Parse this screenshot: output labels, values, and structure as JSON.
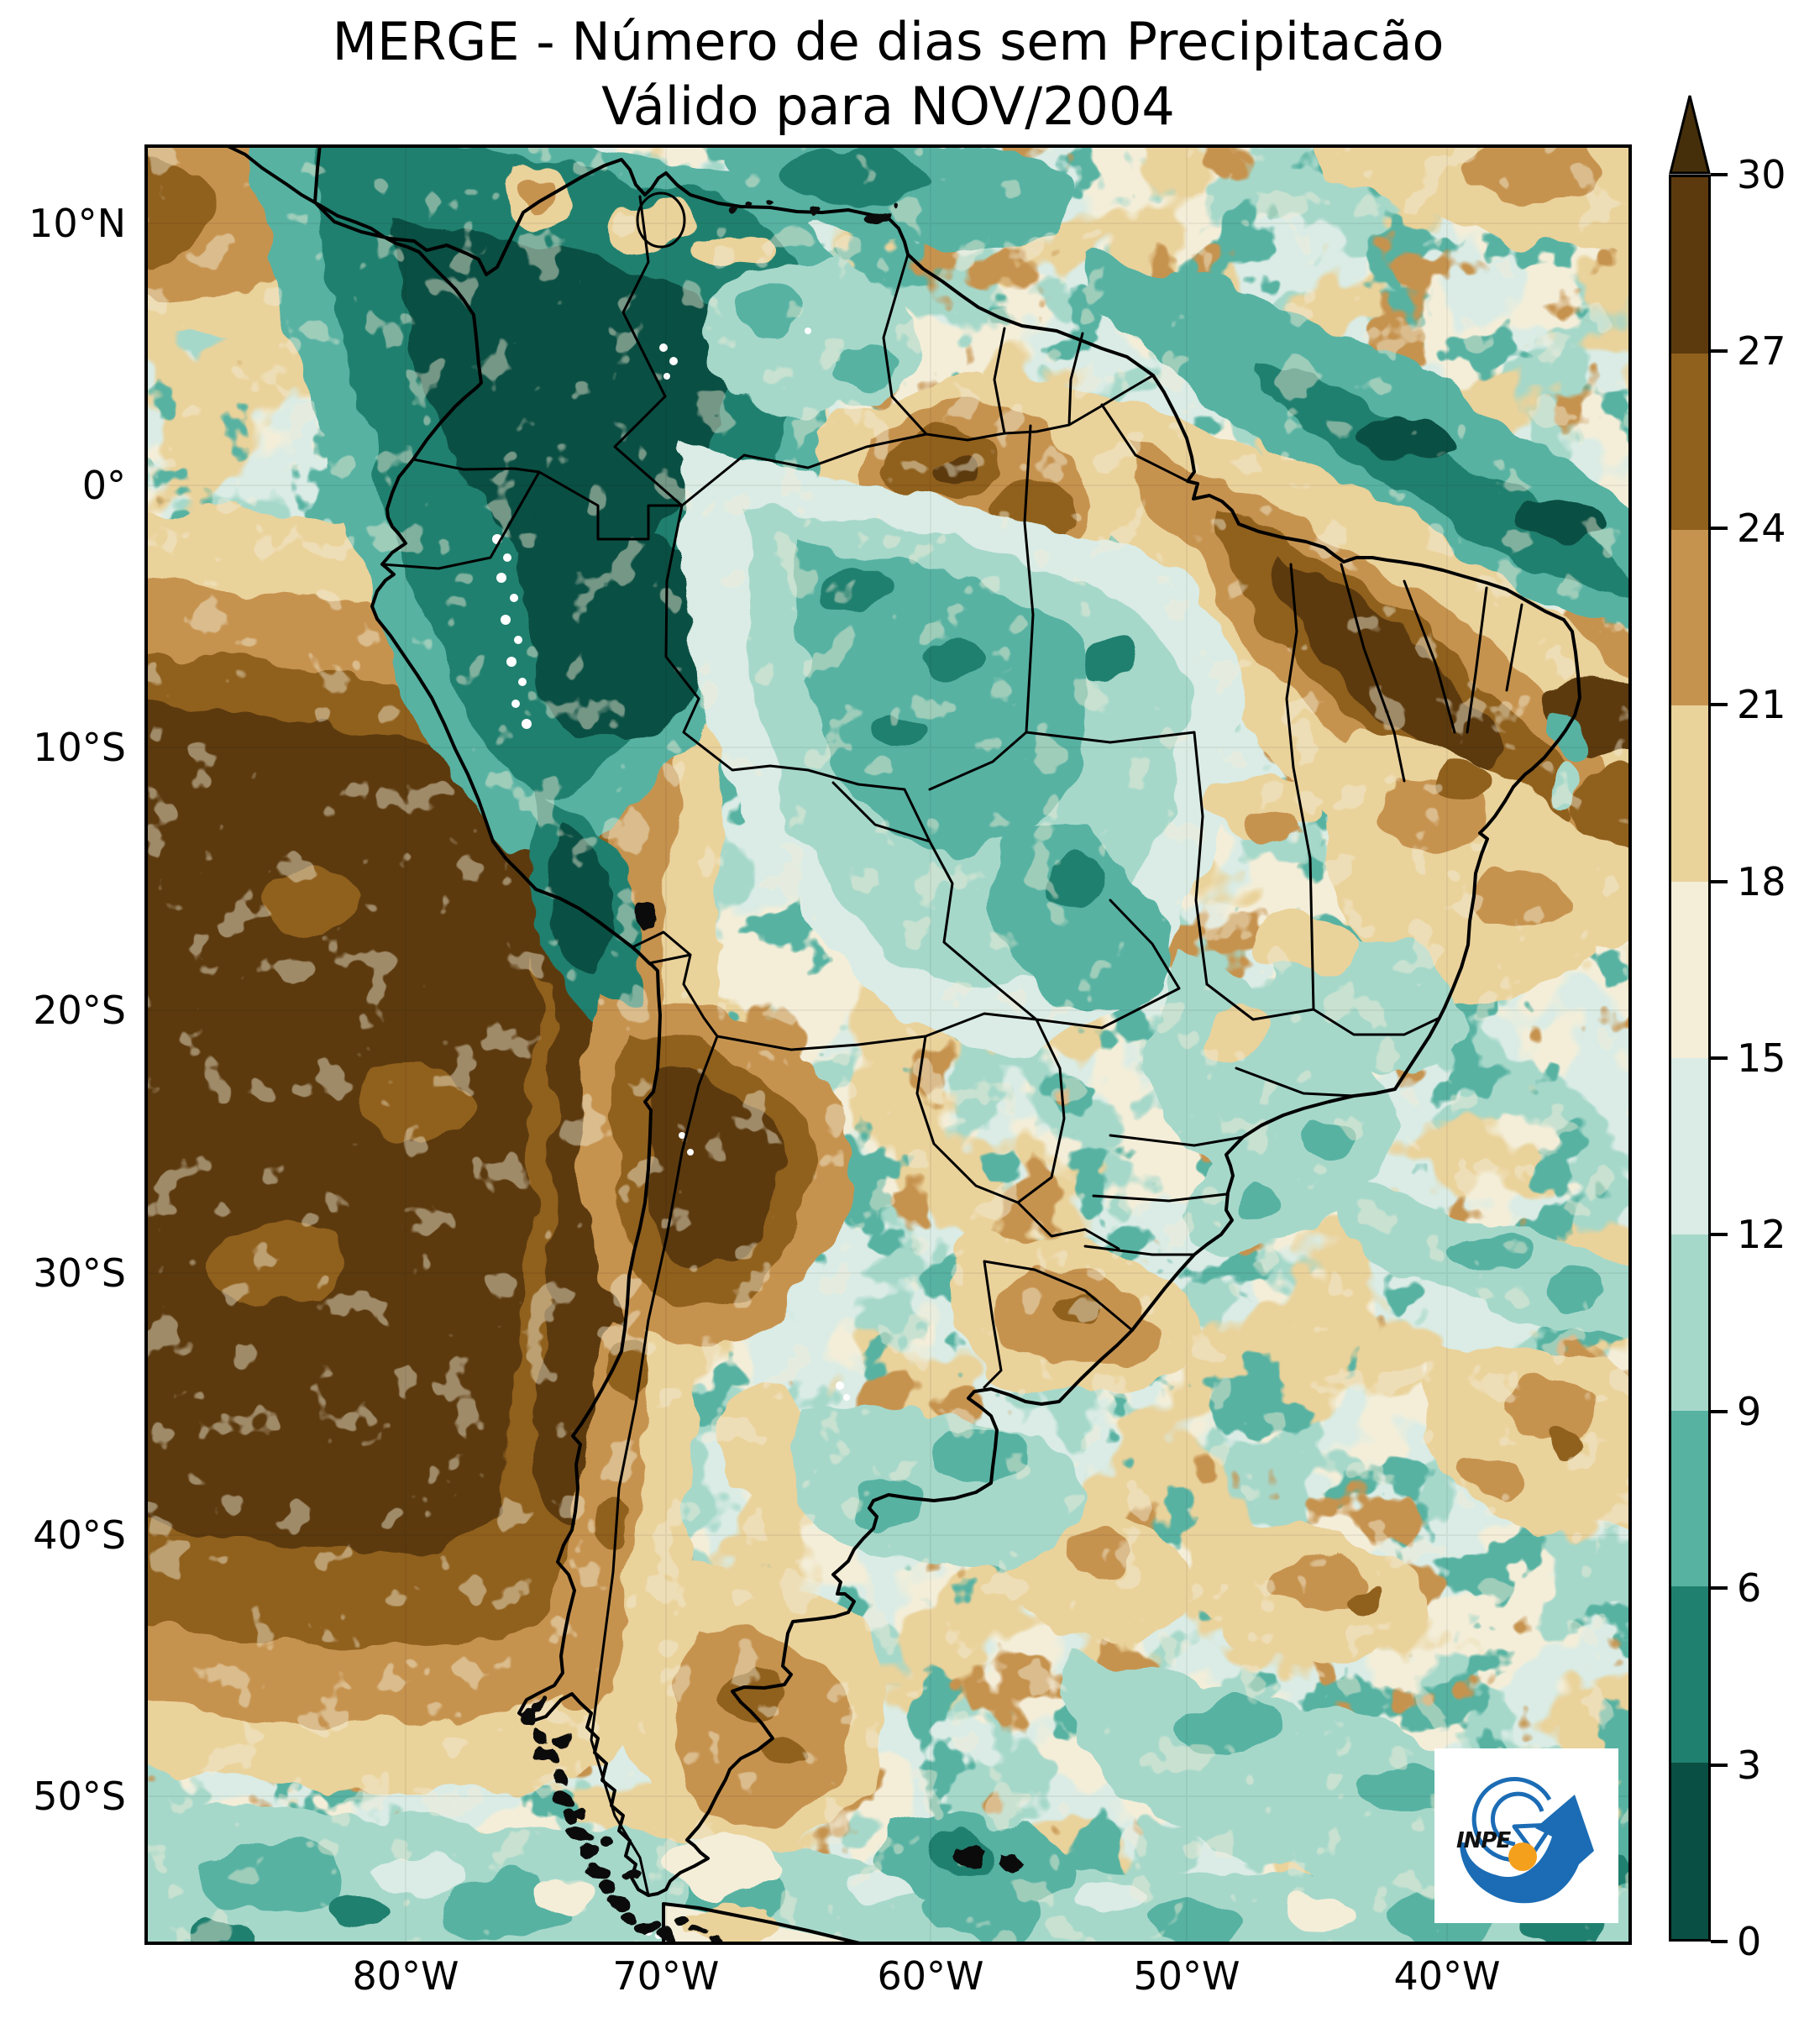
{
  "figure": {
    "title_line1": "MERGE - Número de dias sem Precipitacão",
    "title_line2": "Válido para NOV/2004"
  },
  "axes": {
    "y_tick_labels": [
      "10°N",
      "0°",
      "10°S",
      "20°S",
      "30°S",
      "40°S",
      "50°S"
    ],
    "y_tick_pos_pct": [
      4.38,
      18.94,
      33.49,
      48.09,
      62.69,
      77.24,
      91.74
    ],
    "x_tick_labels": [
      "80°W",
      "70°W",
      "60°W",
      "50°W",
      "40°W"
    ],
    "x_tick_pos_pct": [
      17.56,
      35.06,
      52.85,
      70.07,
      87.58
    ]
  },
  "colorbar": {
    "tick_labels": [
      "0",
      "3",
      "6",
      "9",
      "12",
      "15",
      "18",
      "21",
      "24",
      "27",
      "30"
    ],
    "segment_colors_low_to_high": [
      "#0a4f43",
      "#20806f",
      "#57b2a2",
      "#a6d8ca",
      "#daece5",
      "#f4eed9",
      "#ead29b",
      "#c6934f",
      "#90601d",
      "#5c3a0e"
    ],
    "over_arrow_color": "#452f0a"
  },
  "logo": {
    "text": "INPE",
    "blue": "#1b6cb5",
    "orange": "#f5a01d"
  }
}
